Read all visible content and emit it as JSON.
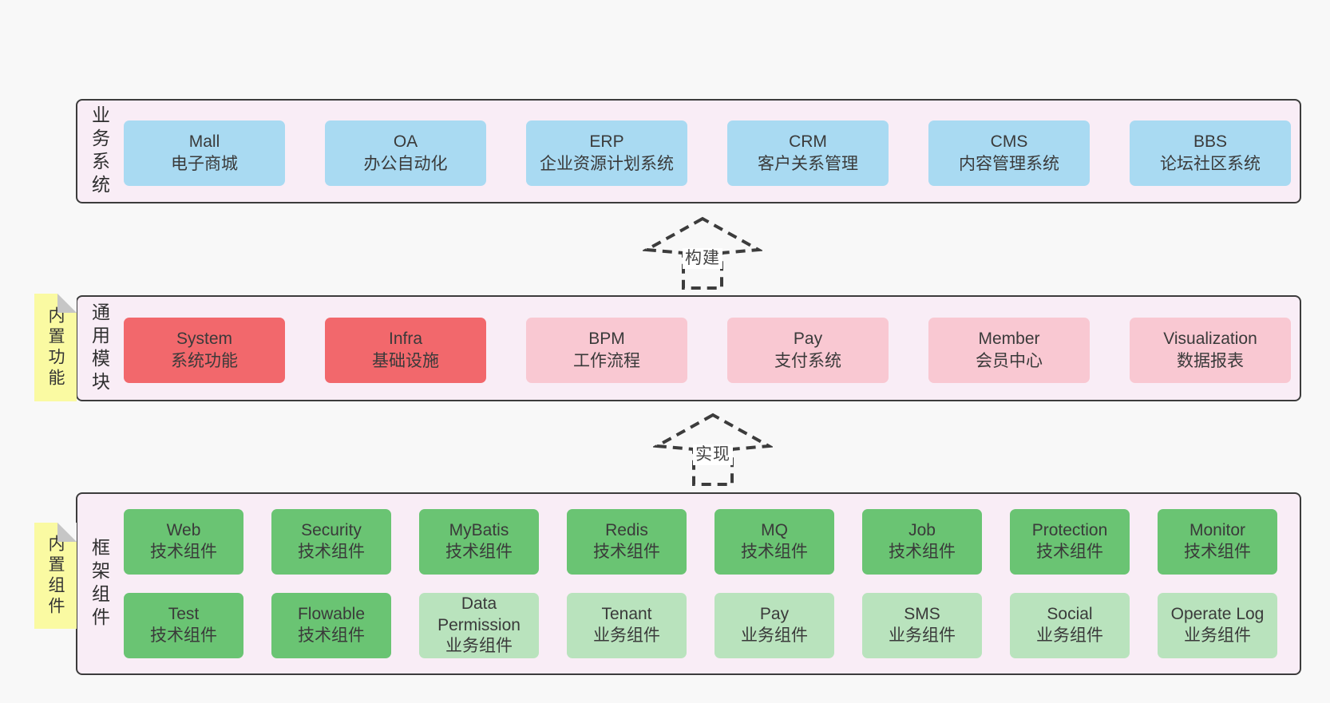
{
  "colors": {
    "page_bg": "#f8f8f8",
    "panel_bg": "#f9edf6",
    "border": "#3c3c3c",
    "blue": "#a9daf2",
    "red": "#f2686c",
    "pink": "#f9c8d2",
    "green": "#6ac473",
    "green_light": "#b9e3bd",
    "tag_yellow": "#fafaa2",
    "fold_gray": "#c6c6c6"
  },
  "layers": [
    {
      "id": "business-systems",
      "label": "业务系统",
      "boxes": [
        {
          "name": "Mall",
          "desc": "电子商城",
          "variant": "blue"
        },
        {
          "name": "OA",
          "desc": "办公自动化",
          "variant": "blue"
        },
        {
          "name": "ERP",
          "desc": "企业资源计划系统",
          "variant": "blue"
        },
        {
          "name": "CRM",
          "desc": "客户关系管理",
          "variant": "blue"
        },
        {
          "name": "CMS",
          "desc": "内容管理系统",
          "variant": "blue"
        },
        {
          "name": "BBS",
          "desc": "论坛社区系统",
          "variant": "blue"
        }
      ]
    },
    {
      "id": "common-modules",
      "label": "通用模块",
      "tag": "内置功能",
      "boxes": [
        {
          "name": "System",
          "desc": "系统功能",
          "variant": "red"
        },
        {
          "name": "Infra",
          "desc": "基础设施",
          "variant": "red"
        },
        {
          "name": "BPM",
          "desc": "工作流程",
          "variant": "pink"
        },
        {
          "name": "Pay",
          "desc": "支付系统",
          "variant": "pink"
        },
        {
          "name": "Member",
          "desc": "会员中心",
          "variant": "pink"
        },
        {
          "name": "Visualization",
          "desc": "数据报表",
          "variant": "pink"
        }
      ]
    },
    {
      "id": "framework-components",
      "label": "框架组件",
      "tag": "内置组件",
      "row1": [
        {
          "name": "Web",
          "desc": "技术组件",
          "variant": "green"
        },
        {
          "name": "Security",
          "desc": "技术组件",
          "variant": "green"
        },
        {
          "name": "MyBatis",
          "desc": "技术组件",
          "variant": "green"
        },
        {
          "name": "Redis",
          "desc": "技术组件",
          "variant": "green"
        },
        {
          "name": "MQ",
          "desc": "技术组件",
          "variant": "green"
        },
        {
          "name": "Job",
          "desc": "技术组件",
          "variant": "green"
        },
        {
          "name": "Protection",
          "desc": "技术组件",
          "variant": "green"
        },
        {
          "name": "Monitor",
          "desc": "技术组件",
          "variant": "green"
        }
      ],
      "row2": [
        {
          "name": "Test",
          "desc": "技术组件",
          "variant": "green"
        },
        {
          "name": "Flowable",
          "desc": "技术组件",
          "variant": "green"
        },
        {
          "name": "Data Permission",
          "desc": "业务组件",
          "variant": "green_light"
        },
        {
          "name": "Tenant",
          "desc": "业务组件",
          "variant": "green_light"
        },
        {
          "name": "Pay",
          "desc": "业务组件",
          "variant": "green_light"
        },
        {
          "name": "SMS",
          "desc": "业务组件",
          "variant": "green_light"
        },
        {
          "name": "Social",
          "desc": "业务组件",
          "variant": "green_light"
        },
        {
          "name": "Operate Log",
          "desc": "业务组件",
          "variant": "green_light"
        }
      ]
    }
  ],
  "arrows": [
    {
      "label": "构建"
    },
    {
      "label": "实现"
    }
  ]
}
